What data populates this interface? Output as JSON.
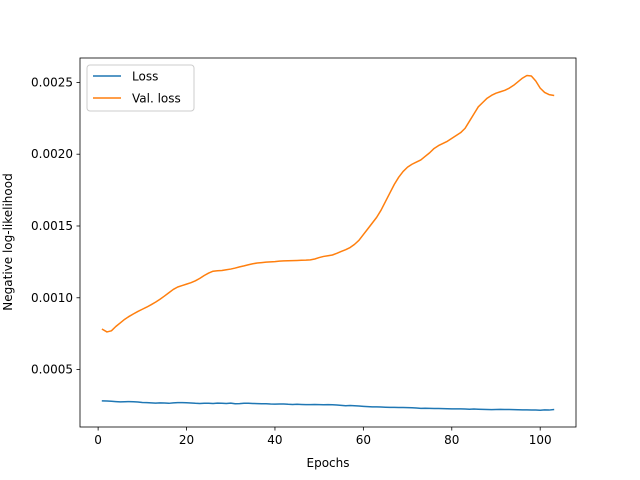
{
  "chart_data": {
    "type": "line",
    "title": "",
    "xlabel": "Epochs",
    "ylabel": "Negative log-likelihood",
    "xlim": [
      -4.1,
      108.1
    ],
    "ylim": [
      0.0001,
      0.00267
    ],
    "xticks": [
      0,
      20,
      40,
      60,
      80,
      100
    ],
    "xtick_labels": [
      "0",
      "20",
      "40",
      "60",
      "80",
      "100"
    ],
    "yticks": [
      0.0005,
      0.001,
      0.0015,
      0.002,
      0.0025
    ],
    "ytick_labels": [
      "0.0005",
      "0.0010",
      "0.0015",
      "0.0020",
      "0.0025"
    ],
    "grid": false,
    "legend_position": "upper-left",
    "x": [
      1,
      2,
      3,
      4,
      5,
      6,
      7,
      8,
      9,
      10,
      11,
      12,
      13,
      14,
      15,
      16,
      17,
      18,
      19,
      20,
      21,
      22,
      23,
      24,
      25,
      26,
      27,
      28,
      29,
      30,
      31,
      32,
      33,
      34,
      35,
      36,
      37,
      38,
      39,
      40,
      41,
      42,
      43,
      44,
      45,
      46,
      47,
      48,
      49,
      50,
      51,
      52,
      53,
      54,
      55,
      56,
      57,
      58,
      59,
      60,
      61,
      62,
      63,
      64,
      65,
      66,
      67,
      68,
      69,
      70,
      71,
      72,
      73,
      74,
      75,
      76,
      77,
      78,
      79,
      80,
      81,
      82,
      83,
      84,
      85,
      86,
      87,
      88,
      89,
      90,
      91,
      92,
      93,
      94,
      95,
      96,
      97,
      98,
      99,
      100,
      101,
      102,
      103
    ],
    "series": [
      {
        "name": "Loss",
        "color": "#1f77b4",
        "values": [
          0.000282,
          0.000281,
          0.000279,
          0.000277,
          0.000275,
          0.000276,
          0.000277,
          0.000276,
          0.000274,
          0.000271,
          0.00027,
          0.000268,
          0.000266,
          0.000268,
          0.000267,
          0.000265,
          0.000268,
          0.00027,
          0.00027,
          0.000269,
          0.000267,
          0.000265,
          0.000264,
          0.000265,
          0.000265,
          0.000264,
          0.000266,
          0.000265,
          0.000264,
          0.000266,
          0.000262,
          0.000263,
          0.000265,
          0.000265,
          0.000264,
          0.000263,
          0.000262,
          0.000262,
          0.00026,
          0.000259,
          0.00026,
          0.00026,
          0.000258,
          0.000257,
          0.000258,
          0.000257,
          0.000256,
          0.000256,
          0.000257,
          0.000256,
          0.000255,
          0.000256,
          0.000255,
          0.000253,
          0.000251,
          0.000248,
          0.00025,
          0.000248,
          0.000246,
          0.000244,
          0.000242,
          0.00024,
          0.00024,
          0.000239,
          0.000238,
          0.000237,
          0.000237,
          0.000236,
          0.000236,
          0.000235,
          0.000234,
          0.000232,
          0.00023,
          0.000231,
          0.00023,
          0.000229,
          0.000229,
          0.000228,
          0.000227,
          0.000226,
          0.000226,
          0.000226,
          0.000225,
          0.000224,
          0.000225,
          0.000224,
          0.000223,
          0.000222,
          0.000221,
          0.000222,
          0.000223,
          0.000222,
          0.000222,
          0.000221,
          0.00022,
          0.000219,
          0.000219,
          0.000218,
          0.000218,
          0.000217,
          0.000219,
          0.000218,
          0.000221
        ]
      },
      {
        "name": "Val. loss",
        "color": "#ff7f0e",
        "values": [
          0.00078,
          0.000762,
          0.00077,
          0.0008,
          0.000825,
          0.00085,
          0.00087,
          0.000888,
          0.000905,
          0.00092,
          0.000935,
          0.000952,
          0.00097,
          0.00099,
          0.001012,
          0.001035,
          0.001058,
          0.001075,
          0.001085,
          0.001095,
          0.001105,
          0.001118,
          0.001135,
          0.001155,
          0.001172,
          0.001185,
          0.001188,
          0.00119,
          0.001195,
          0.0012,
          0.001207,
          0.001215,
          0.001222,
          0.00123,
          0.001237,
          0.001242,
          0.001245,
          0.001248,
          0.00125,
          0.001252,
          0.001255,
          0.001257,
          0.001258,
          0.001259,
          0.00126,
          0.001261,
          0.001262,
          0.001264,
          0.00127,
          0.00128,
          0.001288,
          0.001293,
          0.001298,
          0.00131,
          0.001323,
          0.001335,
          0.00135,
          0.001372,
          0.0014,
          0.00144,
          0.00148,
          0.00152,
          0.00156,
          0.00161,
          0.00167,
          0.00173,
          0.00179,
          0.00184,
          0.00188,
          0.00191,
          0.00193,
          0.001945,
          0.00196,
          0.001985,
          0.00201,
          0.00204,
          0.00206,
          0.002075,
          0.00209,
          0.00211,
          0.00213,
          0.00215,
          0.00218,
          0.00223,
          0.00228,
          0.00233,
          0.00236,
          0.00239,
          0.00241,
          0.002425,
          0.002435,
          0.002445,
          0.00246,
          0.00248,
          0.002505,
          0.00253,
          0.002548,
          0.002545,
          0.00251,
          0.00246,
          0.00243,
          0.002415,
          0.00241
        ]
      }
    ]
  }
}
